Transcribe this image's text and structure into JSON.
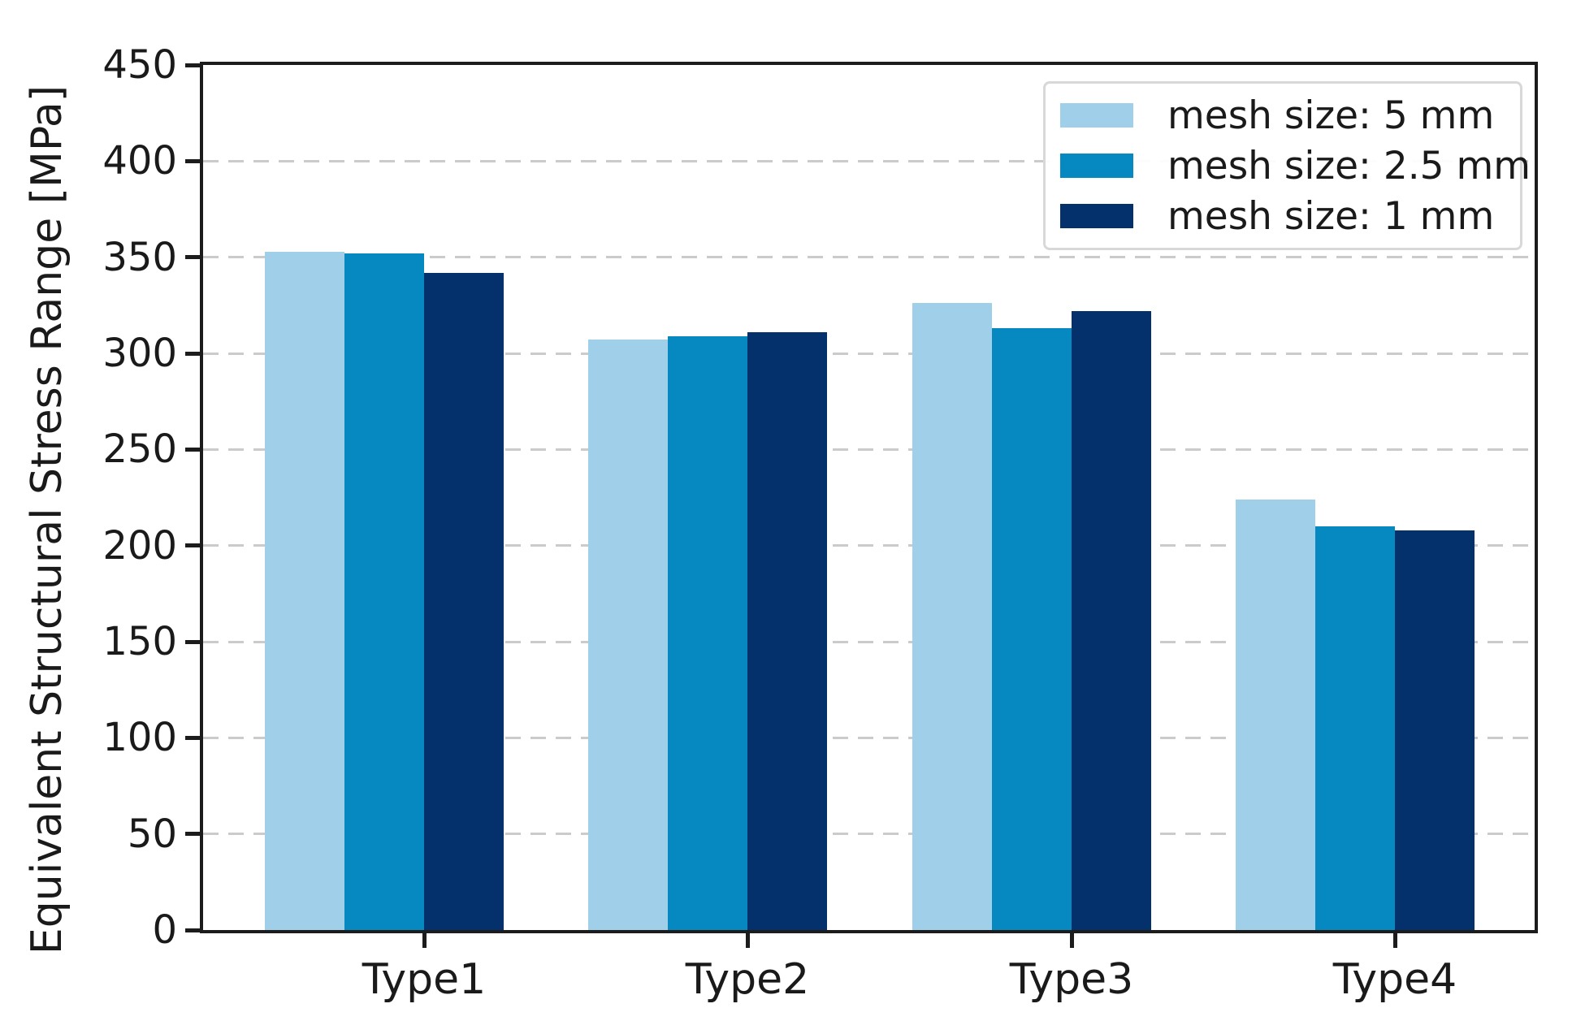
{
  "chart_data": {
    "type": "bar",
    "title": "",
    "xlabel": "",
    "ylabel": "Equivalent Structural Stress Range [MPa]",
    "ylim": [
      0,
      450
    ],
    "y_ticks": [
      0,
      50,
      100,
      150,
      200,
      250,
      300,
      350,
      400,
      450
    ],
    "categories": [
      "Type1",
      "Type2",
      "Type3",
      "Type4"
    ],
    "series": [
      {
        "name": "mesh size: 5 mm",
        "color": "#9FCFE9",
        "values": [
          353,
          307,
          326,
          224
        ]
      },
      {
        "name": "mesh size: 2.5 mm",
        "color": "#0688C1",
        "values": [
          352,
          309,
          313,
          210
        ]
      },
      {
        "name": "mesh size: 1 mm",
        "color": "#04306C",
        "values": [
          342,
          311,
          322,
          208
        ]
      }
    ],
    "legend_position": "upper right",
    "grid": {
      "axis": "y",
      "style": "dashed",
      "color": "#cbcbcb"
    }
  },
  "colors": {
    "spine": "#1c1c1c",
    "text": "#1a1a1a",
    "legend_border": "#d8d8d8",
    "background": "#ffffff"
  }
}
